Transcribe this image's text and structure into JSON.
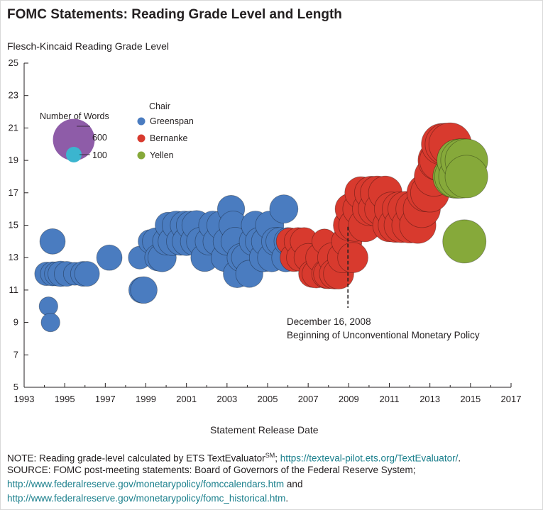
{
  "page": {
    "title": "FOMC Statements: Reading Grade Level and Length",
    "note_prefix": "NOTE: Reading grade-level calculated by ETS TextEvaluator",
    "note_sup": "SM",
    "note_sep": "; ",
    "note_link": "https://texteval-pilot.ets.org/TextEvaluator/",
    "note_end": ".",
    "source_line1": "SOURCE: FOMC post-meeting statements: Board of Governors of the Federal Reserve System;",
    "source_link1": "http://www.federalreserve.gov/monetarypolicy/fomccalendars.htm",
    "source_mid": " and",
    "source_link2": "http://www.federalreserve.gov/monetarypolicy/fomc_historical.htm",
    "source_end": "."
  },
  "chart_data": {
    "type": "scatter",
    "title": "FOMC Statements: Reading Grade Level and Length",
    "ylabel": "Flesch-Kincaid Reading Grade Level",
    "xlabel": "Statement Release Date",
    "xlim": [
      1993,
      2017
    ],
    "ylim": [
      5,
      25
    ],
    "x_ticks": [
      "1993",
      "1995",
      "1997",
      "1999",
      "2001",
      "2003",
      "2005",
      "2007",
      "2009",
      "2011",
      "2013",
      "2015",
      "2017"
    ],
    "y_ticks": [
      "5",
      "7",
      "9",
      "11",
      "13",
      "15",
      "17",
      "19",
      "21",
      "23",
      "25"
    ],
    "grid": false,
    "size_legend": {
      "title": "Number of Words",
      "entries": [
        {
          "label": "600",
          "words": 600,
          "color": "#8e5ca8"
        },
        {
          "label": "100",
          "words": 100,
          "color": "#3bb5cf"
        }
      ]
    },
    "color_legend": {
      "title": "Chair",
      "entries": [
        {
          "label": "Greenspan",
          "color": "#4a7cc0"
        },
        {
          "label": "Bernanke",
          "color": "#d83a2e"
        },
        {
          "label": "Yellen",
          "color": "#86a93a"
        }
      ]
    },
    "annotation": {
      "x": 2008.96,
      "y_from": 11.8,
      "y_to": 14.9,
      "line1": "December 16, 2008",
      "line2": "Beginning of Unconventional Monetary Policy"
    },
    "series": [
      {
        "name": "Greenspan",
        "color": "#4a7cc0",
        "points": [
          [
            1994.1,
            12,
            120
          ],
          [
            1994.2,
            10,
            60
          ],
          [
            1994.3,
            9,
            60
          ],
          [
            1994.4,
            14,
            150
          ],
          [
            1994.4,
            12,
            130
          ],
          [
            1994.6,
            12,
            130
          ],
          [
            1994.8,
            12,
            150
          ],
          [
            1995.1,
            12,
            140
          ],
          [
            1995.5,
            12,
            110
          ],
          [
            1995.9,
            12,
            140
          ],
          [
            1996.1,
            12,
            140
          ],
          [
            1997.2,
            13,
            150
          ],
          [
            1998.7,
            13,
            110
          ],
          [
            1998.8,
            11,
            160
          ],
          [
            1998.9,
            11,
            170
          ],
          [
            1999.2,
            14,
            120
          ],
          [
            1999.5,
            14,
            180
          ],
          [
            1999.6,
            13,
            170
          ],
          [
            1999.8,
            13,
            200
          ],
          [
            2000.0,
            14,
            180
          ],
          [
            2000.1,
            15,
            160
          ],
          [
            2000.3,
            14,
            200
          ],
          [
            2000.5,
            15,
            200
          ],
          [
            2000.7,
            14,
            190
          ],
          [
            2000.9,
            15,
            200
          ],
          [
            2001.0,
            14,
            200
          ],
          [
            2001.2,
            15,
            200
          ],
          [
            2001.4,
            14,
            200
          ],
          [
            2001.5,
            15,
            220
          ],
          [
            2001.7,
            14,
            200
          ],
          [
            2001.9,
            13,
            190
          ],
          [
            2002.1,
            14,
            180
          ],
          [
            2002.3,
            15,
            200
          ],
          [
            2002.5,
            14,
            190
          ],
          [
            2002.7,
            15,
            200
          ],
          [
            2002.9,
            13,
            190
          ],
          [
            2003.0,
            14,
            190
          ],
          [
            2003.2,
            16,
            180
          ],
          [
            2003.3,
            15,
            200
          ],
          [
            2003.4,
            14,
            200
          ],
          [
            2003.5,
            12,
            190
          ],
          [
            2003.7,
            13,
            200
          ],
          [
            2003.9,
            13,
            190
          ],
          [
            2004.1,
            12,
            180
          ],
          [
            2004.3,
            14,
            200
          ],
          [
            2004.4,
            15,
            200
          ],
          [
            2004.6,
            14,
            200
          ],
          [
            2004.8,
            13,
            200
          ],
          [
            2004.9,
            14,
            200
          ],
          [
            2005.1,
            15,
            200
          ],
          [
            2005.2,
            13,
            200
          ],
          [
            2005.4,
            14,
            200
          ],
          [
            2005.6,
            14,
            190
          ],
          [
            2005.8,
            16,
            200
          ],
          [
            2005.9,
            13,
            200
          ],
          [
            2006.0,
            14,
            190
          ]
        ]
      },
      {
        "name": "Bernanke",
        "color": "#d83a2e",
        "points": [
          [
            2006.1,
            14,
            180
          ],
          [
            2006.3,
            13,
            190
          ],
          [
            2006.5,
            14,
            190
          ],
          [
            2006.6,
            13,
            180
          ],
          [
            2006.8,
            14,
            190
          ],
          [
            2007.0,
            13,
            200
          ],
          [
            2007.2,
            12,
            180
          ],
          [
            2007.4,
            12,
            200
          ],
          [
            2007.6,
            13,
            220
          ],
          [
            2007.8,
            14,
            140
          ],
          [
            2007.9,
            12,
            220
          ],
          [
            2008.0,
            12,
            230
          ],
          [
            2008.2,
            13,
            230
          ],
          [
            2008.3,
            12,
            240
          ],
          [
            2008.5,
            12,
            240
          ],
          [
            2008.7,
            13,
            240
          ],
          [
            2008.9,
            14,
            240
          ],
          [
            2009.0,
            15,
            250
          ],
          [
            2009.1,
            16,
            260
          ],
          [
            2009.2,
            13,
            240
          ],
          [
            2009.3,
            15,
            280
          ],
          [
            2009.5,
            16,
            280
          ],
          [
            2009.6,
            17,
            280
          ],
          [
            2009.8,
            15,
            300
          ],
          [
            2010.0,
            16,
            300
          ],
          [
            2010.1,
            17,
            300
          ],
          [
            2010.3,
            16,
            310
          ],
          [
            2010.4,
            17,
            310
          ],
          [
            2010.6,
            16,
            300
          ],
          [
            2010.8,
            17,
            310
          ],
          [
            2011.0,
            15,
            300
          ],
          [
            2011.1,
            16,
            320
          ],
          [
            2011.3,
            15,
            330
          ],
          [
            2011.5,
            16,
            330
          ],
          [
            2011.6,
            15,
            340
          ],
          [
            2011.8,
            16,
            350
          ],
          [
            2012.0,
            15,
            360
          ],
          [
            2012.2,
            16,
            360
          ],
          [
            2012.4,
            15,
            380
          ],
          [
            2012.6,
            16,
            400
          ],
          [
            2012.8,
            17,
            420
          ],
          [
            2013.0,
            17,
            440
          ],
          [
            2013.2,
            18,
            460
          ],
          [
            2013.4,
            19,
            480
          ],
          [
            2013.5,
            19,
            500
          ],
          [
            2013.6,
            20,
            520
          ],
          [
            2013.8,
            20,
            540
          ],
          [
            2014.0,
            20,
            560
          ]
        ]
      },
      {
        "name": "Yellen",
        "color": "#86a93a",
        "points": [
          [
            2014.2,
            18,
            560
          ],
          [
            2014.3,
            18,
            580
          ],
          [
            2014.4,
            19,
            560
          ],
          [
            2014.5,
            18,
            580
          ],
          [
            2014.6,
            19,
            580
          ],
          [
            2014.7,
            14,
            580
          ],
          [
            2014.8,
            19,
            560
          ],
          [
            2014.8,
            18,
            560
          ]
        ]
      }
    ]
  }
}
